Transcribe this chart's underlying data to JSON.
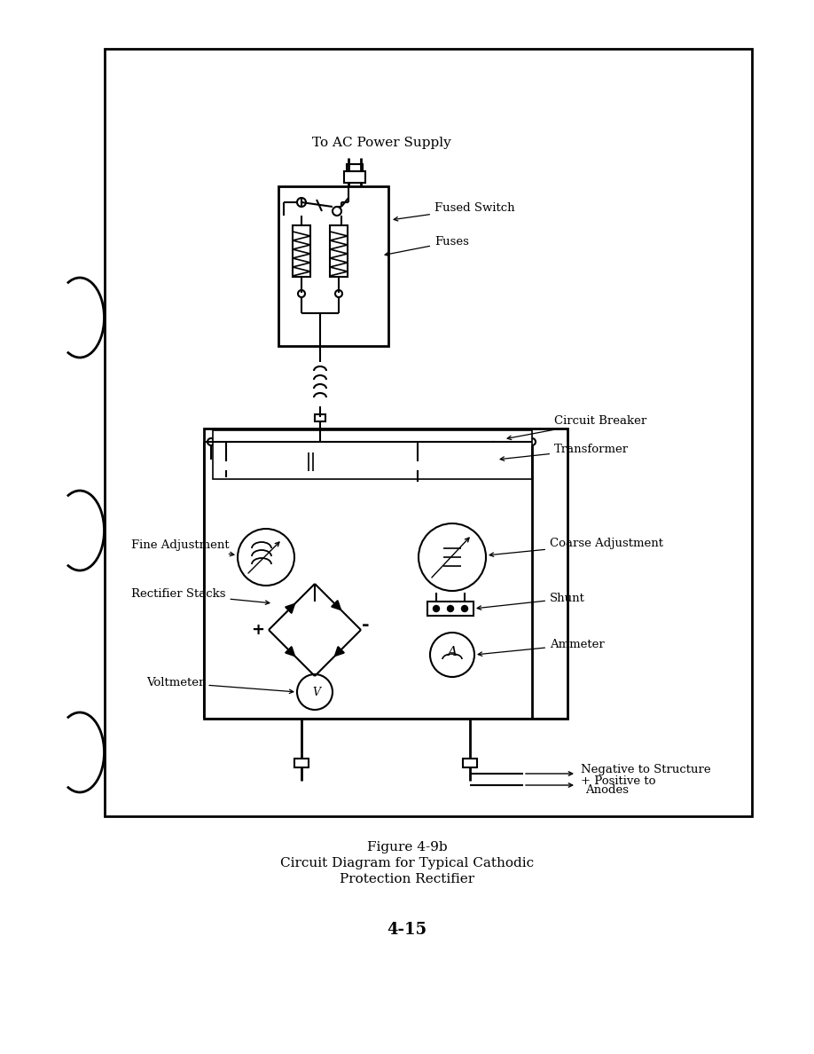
{
  "title_line1": "Figure 4-9b",
  "title_line2": "Circuit Diagram for Typical Cathodic",
  "title_line3": "Protection Rectifier",
  "page_number": "4-15",
  "bg_color": "#ffffff",
  "line_color": "#000000",
  "labels": {
    "ac_power": "To AC Power Supply",
    "fused_switch": "Fused Switch",
    "fuses": "Fuses",
    "circuit_breaker": "Circuit Breaker",
    "transformer": "Transformer",
    "fine_adjustment": "Fine Adjustment",
    "coarse_adjustment": "Coarse Adjustment",
    "rectifier_stacks": "Rectifier Stacks",
    "shunt": "Shunt",
    "voltmeter": "Voltmeter",
    "ammeter": "Ammeter",
    "negative": "Negative to Structure",
    "positive": "+ Positive to",
    "anodes": "Anodes"
  }
}
